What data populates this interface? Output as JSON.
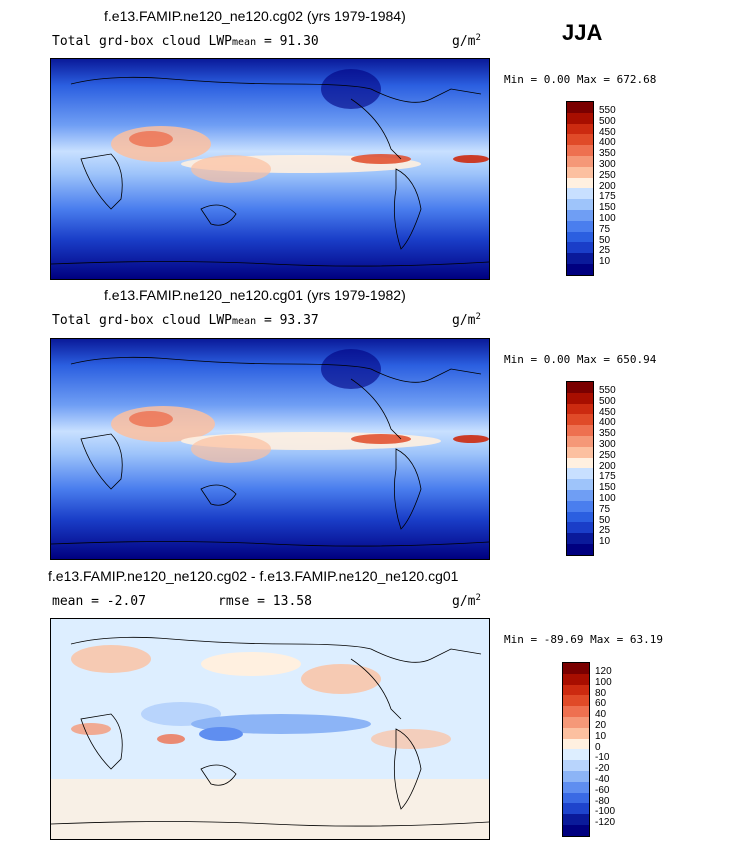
{
  "season": "JJA",
  "panels": [
    {
      "title": "f.e13.FAMIP.ne120_ne120.cg02 (yrs 1979-1984)",
      "var_label": "Total grd-box cloud LWP",
      "stat_sub": "mean",
      "stat_value": "=  91.30",
      "units": "g/m",
      "units_sup": "2",
      "minmax": "Min =   0.00 Max = 672.68",
      "colorbar": {
        "labels": [
          "550",
          "500",
          "450",
          "400",
          "350",
          "300",
          "250",
          "200",
          "175",
          "150",
          "100",
          "75",
          "50",
          "25",
          "10"
        ],
        "colors": [
          "#7a0000",
          "#a80e00",
          "#cc2a10",
          "#e04a28",
          "#ee7050",
          "#f59878",
          "#fcc0a0",
          "#fff0e0",
          "#c8e0ff",
          "#9ec4fa",
          "#6f9ef4",
          "#4a7eee",
          "#2b5fe0",
          "#1a3ec8",
          "#0a1a9a",
          "#000080"
        ]
      },
      "chart_data": {
        "type": "heatmap",
        "title": "f.e13.FAMIP.ne120_ne120.cg02 (yrs 1979-1984)",
        "variable": "Total grd-box cloud LWP",
        "units": "g/m2",
        "mean": 91.3,
        "min": 0.0,
        "max": 672.68,
        "levels": [
          10,
          25,
          50,
          75,
          100,
          150,
          175,
          200,
          250,
          300,
          350,
          400,
          450,
          500,
          550
        ]
      }
    },
    {
      "title": "f.e13.FAMIP.ne120_ne120.cg01 (yrs 1979-1982)",
      "var_label": "Total grd-box cloud LWP",
      "stat_sub": "mean",
      "stat_value": "=  93.37",
      "units": "g/m",
      "units_sup": "2",
      "minmax": "Min =   0.00 Max = 650.94",
      "colorbar": {
        "labels": [
          "550",
          "500",
          "450",
          "400",
          "350",
          "300",
          "250",
          "200",
          "175",
          "150",
          "100",
          "75",
          "50",
          "25",
          "10"
        ],
        "colors": [
          "#7a0000",
          "#a80e00",
          "#cc2a10",
          "#e04a28",
          "#ee7050",
          "#f59878",
          "#fcc0a0",
          "#fff0e0",
          "#c8e0ff",
          "#9ec4fa",
          "#6f9ef4",
          "#4a7eee",
          "#2b5fe0",
          "#1a3ec8",
          "#0a1a9a",
          "#000080"
        ]
      },
      "chart_data": {
        "type": "heatmap",
        "title": "f.e13.FAMIP.ne120_ne120.cg01 (yrs 1979-1982)",
        "variable": "Total grd-box cloud LWP",
        "units": "g/m2",
        "mean": 93.37,
        "min": 0.0,
        "max": 650.94,
        "levels": [
          10,
          25,
          50,
          75,
          100,
          150,
          175,
          200,
          250,
          300,
          350,
          400,
          450,
          500,
          550
        ]
      }
    },
    {
      "title": "f.e13.FAMIP.ne120_ne120.cg02 - f.e13.FAMIP.ne120_ne120.cg01",
      "mean_text": "mean =  -2.07",
      "rmse_text": "rmse =  13.58",
      "units": "g/m",
      "units_sup": "2",
      "minmax": "Min = -89.69 Max =  63.19",
      "colorbar": {
        "labels": [
          "120",
          "100",
          "80",
          "60",
          "40",
          "20",
          "10",
          "0",
          "-10",
          "-20",
          "-40",
          "-60",
          "-80",
          "-100",
          "-120"
        ],
        "colors": [
          "#7a0000",
          "#a80e00",
          "#cc2a10",
          "#e04a28",
          "#ee7050",
          "#f59878",
          "#fcc0a0",
          "#fff0e0",
          "#ddeeff",
          "#b8d4fc",
          "#8cb4f6",
          "#5f8ef0",
          "#3a6ae4",
          "#1e44cc",
          "#0a1a9a",
          "#000080"
        ]
      },
      "chart_data": {
        "type": "heatmap",
        "title": "f.e13.FAMIP.ne120_ne120.cg02 - f.e13.FAMIP.ne120_ne120.cg01",
        "units": "g/m2",
        "mean": -2.07,
        "rmse": 13.58,
        "min": -89.69,
        "max": 63.19,
        "levels": [
          -120,
          -100,
          -80,
          -60,
          -40,
          -20,
          -10,
          0,
          10,
          20,
          40,
          60,
          80,
          100,
          120
        ]
      }
    }
  ]
}
